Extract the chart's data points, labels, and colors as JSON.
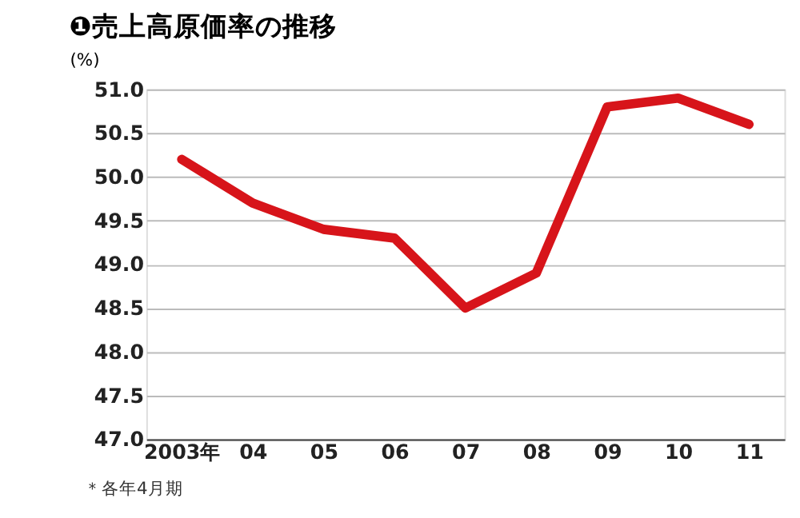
{
  "chart_data": {
    "type": "line",
    "title": "❶売上高原価率の推移",
    "ylabel": "(%)",
    "categories": [
      "2003年",
      "04",
      "05",
      "06",
      "07",
      "08",
      "09",
      "10",
      "11"
    ],
    "series": [
      {
        "color": "#d7141a",
        "values": [
          50.2,
          49.7,
          49.4,
          49.3,
          48.5,
          48.9,
          50.8,
          50.9,
          50.6
        ]
      }
    ],
    "ylim": [
      47.0,
      51.0
    ],
    "yticks": [
      {
        "value": 47,
        "label": "47.0"
      },
      {
        "value": 47.5,
        "label": "47.5"
      },
      {
        "value": 48,
        "label": "48.0"
      },
      {
        "value": 48.5,
        "label": "48.5"
      },
      {
        "value": 49,
        "label": "49.0"
      },
      {
        "value": 49.5,
        "label": "49.5"
      },
      {
        "value": 50,
        "label": "50.0"
      },
      {
        "value": 50.5,
        "label": "50.5"
      },
      {
        "value": 51,
        "label": "51.0"
      }
    ],
    "grid": "y",
    "marker": "none",
    "line_style": "solid",
    "annotations": [
      "＊各年4月期"
    ]
  }
}
